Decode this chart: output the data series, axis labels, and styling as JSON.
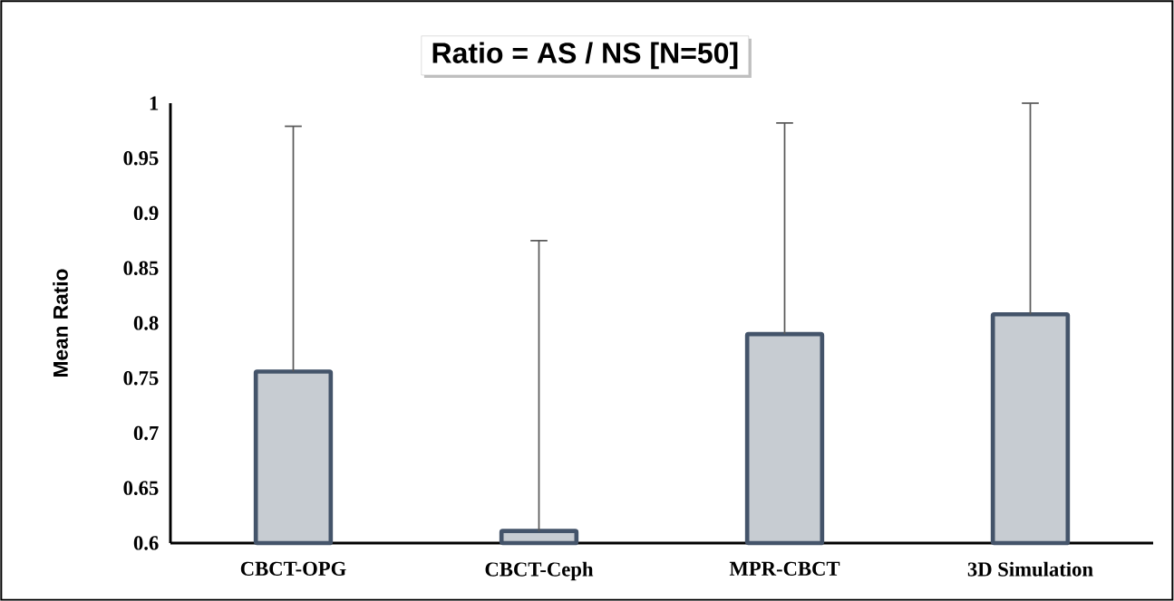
{
  "chart_data": {
    "type": "bar",
    "title": "Ratio = AS / NS [N=50]",
    "ylabel": "Mean Ratio",
    "categories": [
      "CBCT-OPG",
      "CBCT-Ceph",
      "MPR-CBCT",
      "3D Simulation"
    ],
    "values": [
      0.756,
      0.611,
      0.79,
      0.808
    ],
    "errors": [
      [
        0.756,
        0.979
      ],
      [
        0.611,
        0.875
      ],
      [
        0.79,
        0.982
      ],
      [
        0.808,
        1.0
      ]
    ],
    "color": "#44546a",
    "ylim": [
      0.6,
      1
    ],
    "yticks": [
      0.6,
      0.65,
      0.7,
      0.75,
      0.8,
      0.85,
      0.9,
      0.95,
      1
    ],
    "grid": false
  }
}
